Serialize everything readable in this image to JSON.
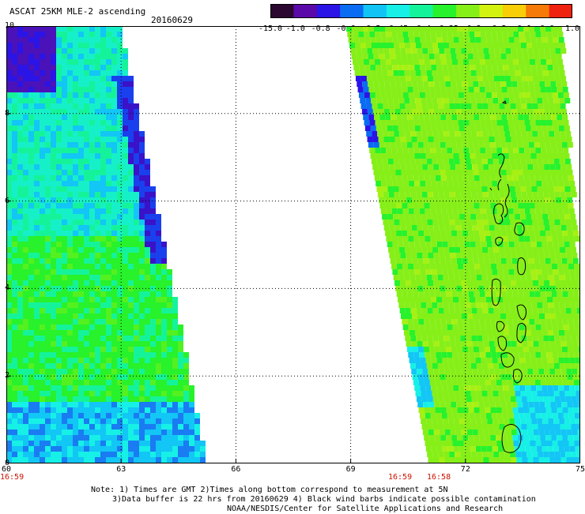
{
  "header": {
    "title": "ASCAT 25KM MLE-2 ascending",
    "date": "20160629"
  },
  "colorbar": {
    "labels": [
      "-15.0",
      "-1.0",
      "-0.8",
      "-0.6",
      "-0.5",
      "-0.45",
      "-0.4",
      "-0.35",
      "-0.3",
      "-0.2",
      "-0.1",
      "0.0",
      "1.0"
    ],
    "colors": [
      "#2a0830",
      "#5a0aa8",
      "#2b14e6",
      "#0a6cf2",
      "#11c4f5",
      "#16f0e6",
      "#15f39a",
      "#27f22b",
      "#86ef18",
      "#d4f210",
      "#f7ce08",
      "#f57a08",
      "#ef2210"
    ]
  },
  "map": {
    "lon_ticks": [
      "60",
      "63",
      "66",
      "69",
      "72",
      "75"
    ],
    "lat_ticks": [
      "0",
      "2",
      "4",
      "6",
      "8",
      "10"
    ],
    "lon_range": [
      60,
      75
    ],
    "lat_range": [
      0,
      10
    ],
    "pass_times": {
      "left_start": "16:59",
      "right_a": "16:59",
      "right_b": "16:58"
    }
  },
  "notes": {
    "line1": "Note: 1) Times are GMT 2)Times along bottom correspond to measurement at 5N",
    "line2": "3)Data buffer is 22 hrs from 20160629 4) Black wind barbs indicate possible contamination",
    "line3": "NOAA/NESDIS/Center for Satellite Applications and Research"
  }
}
